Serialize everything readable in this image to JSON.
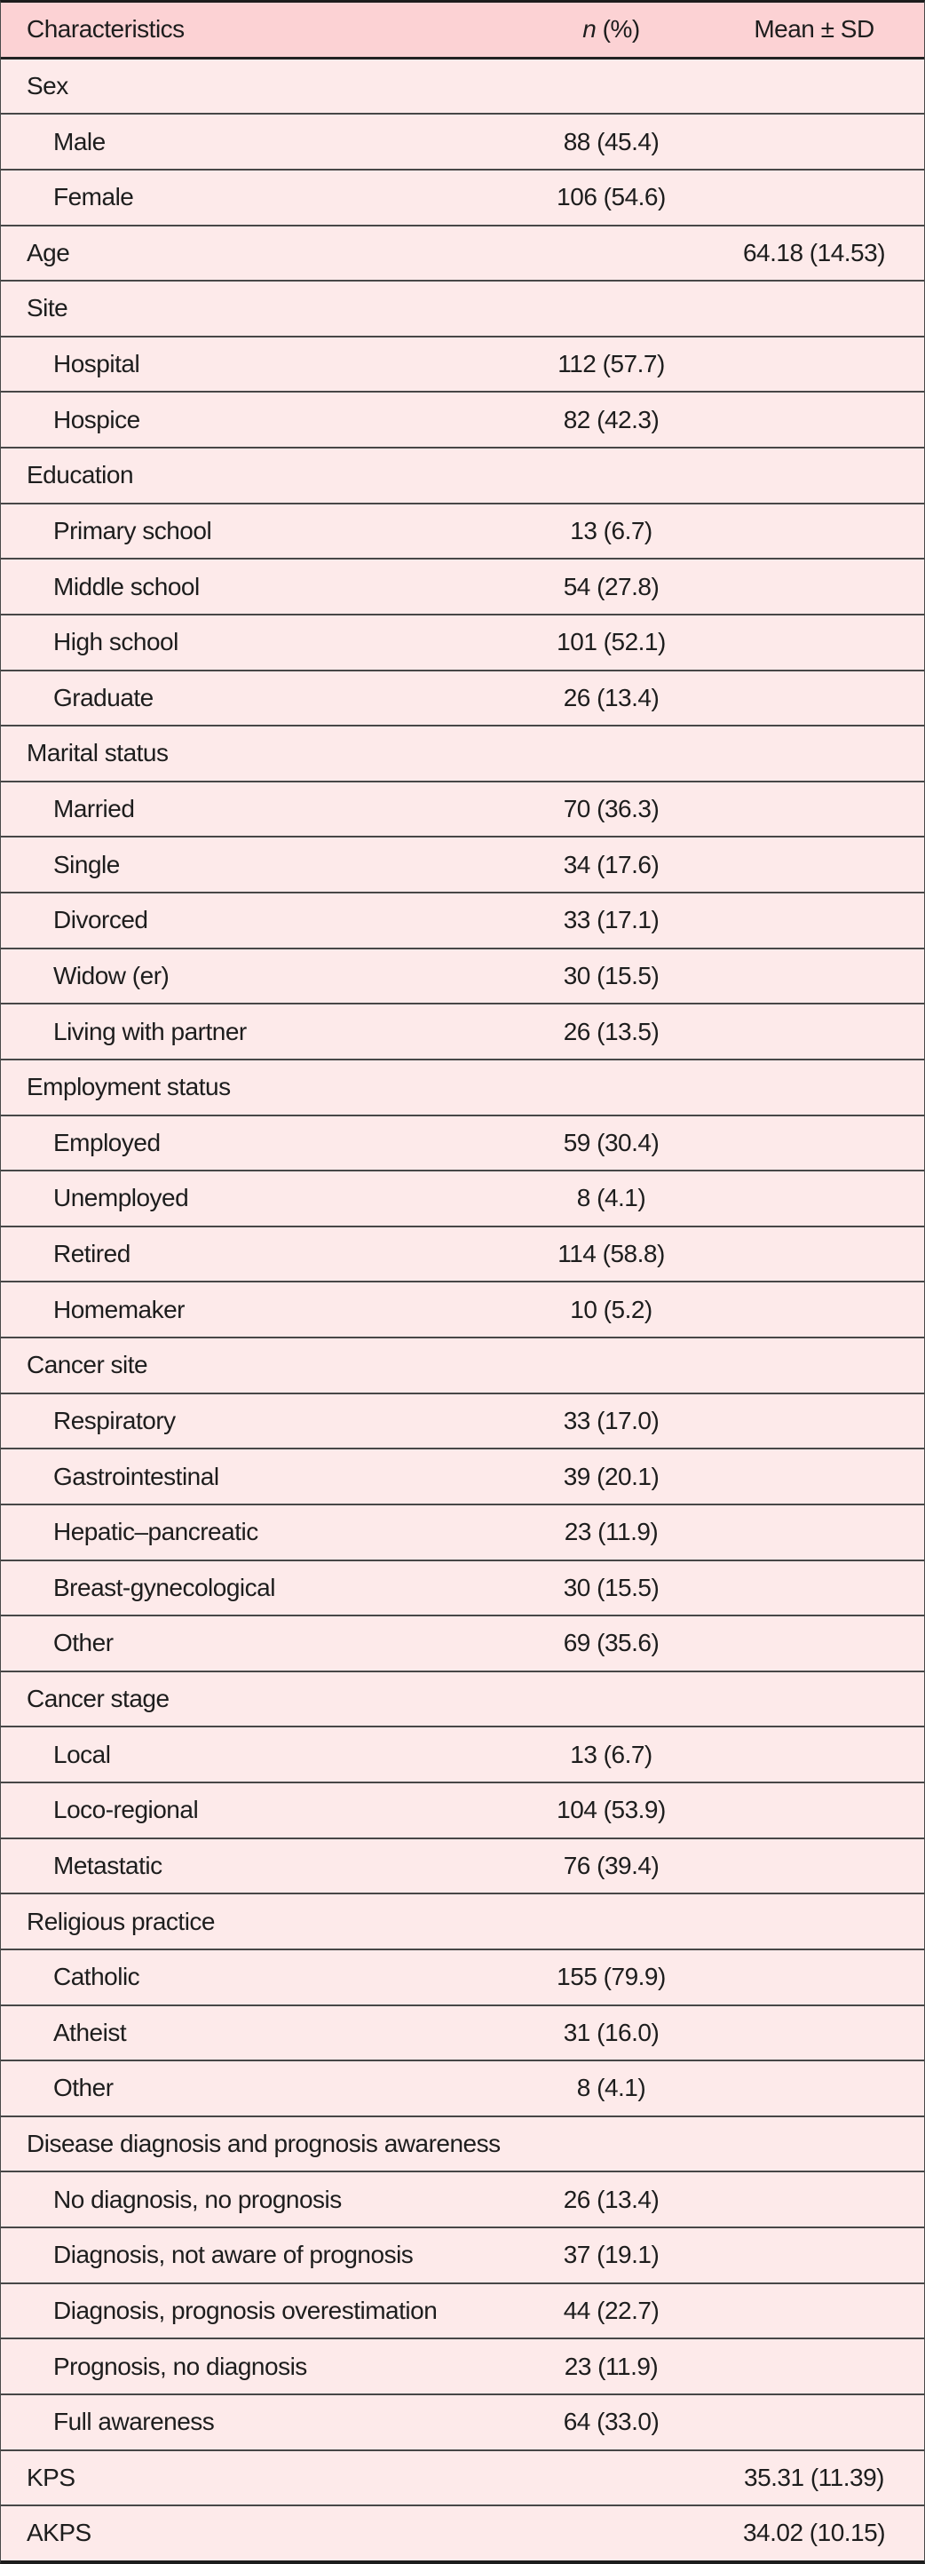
{
  "table": {
    "header": {
      "characteristics": "Characteristics",
      "n_italic": "n",
      "n_rest": " (%)",
      "mean_sd": "Mean ± SD"
    },
    "colors": {
      "header_bg": "#fcd2d4",
      "row_bg": "#fdeaea",
      "row_border": "#474747",
      "heavy_border": "#1c1c1c",
      "text": "#1d1d1d"
    },
    "rows": [
      {
        "type": "category",
        "label": "Sex",
        "n": "",
        "mean": ""
      },
      {
        "type": "item",
        "label": "Male",
        "n": "88 (45.4)",
        "mean": ""
      },
      {
        "type": "item",
        "label": "Female",
        "n": "106 (54.6)",
        "mean": ""
      },
      {
        "type": "category",
        "label": "Age",
        "n": "",
        "mean": "64.18 (14.53)"
      },
      {
        "type": "category",
        "label": "Site",
        "n": "",
        "mean": ""
      },
      {
        "type": "item",
        "label": "Hospital",
        "n": "112 (57.7)",
        "mean": ""
      },
      {
        "type": "item",
        "label": "Hospice",
        "n": "82 (42.3)",
        "mean": ""
      },
      {
        "type": "category",
        "label": "Education",
        "n": "",
        "mean": ""
      },
      {
        "type": "item",
        "label": "Primary school",
        "n": "13 (6.7)",
        "mean": ""
      },
      {
        "type": "item",
        "label": "Middle school",
        "n": "54 (27.8)",
        "mean": ""
      },
      {
        "type": "item",
        "label": "High school",
        "n": "101 (52.1)",
        "mean": ""
      },
      {
        "type": "item",
        "label": "Graduate",
        "n": "26 (13.4)",
        "mean": ""
      },
      {
        "type": "category",
        "label": "Marital status",
        "n": "",
        "mean": ""
      },
      {
        "type": "item",
        "label": "Married",
        "n": "70 (36.3)",
        "mean": ""
      },
      {
        "type": "item",
        "label": "Single",
        "n": "34 (17.6)",
        "mean": ""
      },
      {
        "type": "item",
        "label": "Divorced",
        "n": "33 (17.1)",
        "mean": ""
      },
      {
        "type": "item",
        "label": "Widow (er)",
        "n": "30 (15.5)",
        "mean": ""
      },
      {
        "type": "item",
        "label": "Living with partner",
        "n": "26 (13.5)",
        "mean": ""
      },
      {
        "type": "category",
        "label": "Employment status",
        "n": "",
        "mean": ""
      },
      {
        "type": "item",
        "label": "Employed",
        "n": "59 (30.4)",
        "mean": ""
      },
      {
        "type": "item",
        "label": "Unemployed",
        "n": "8 (4.1)",
        "mean": ""
      },
      {
        "type": "item",
        "label": "Retired",
        "n": "114 (58.8)",
        "mean": ""
      },
      {
        "type": "item",
        "label": "Homemaker",
        "n": "10 (5.2)",
        "mean": ""
      },
      {
        "type": "category",
        "label": "Cancer site",
        "n": "",
        "mean": ""
      },
      {
        "type": "item",
        "label": "Respiratory",
        "n": "33 (17.0)",
        "mean": ""
      },
      {
        "type": "item",
        "label": "Gastrointestinal",
        "n": "39 (20.1)",
        "mean": ""
      },
      {
        "type": "item",
        "label": "Hepatic–pancreatic",
        "n": "23 (11.9)",
        "mean": ""
      },
      {
        "type": "item",
        "label": "Breast-gynecological",
        "n": "30 (15.5)",
        "mean": ""
      },
      {
        "type": "item",
        "label": "Other",
        "n": "69 (35.6)",
        "mean": ""
      },
      {
        "type": "category",
        "label": "Cancer stage",
        "n": "",
        "mean": ""
      },
      {
        "type": "item",
        "label": "Local",
        "n": "13 (6.7)",
        "mean": ""
      },
      {
        "type": "item",
        "label": "Loco-regional",
        "n": "104 (53.9)",
        "mean": ""
      },
      {
        "type": "item",
        "label": "Metastatic",
        "n": "76 (39.4)",
        "mean": ""
      },
      {
        "type": "category",
        "label": "Religious practice",
        "n": "",
        "mean": ""
      },
      {
        "type": "item",
        "label": "Catholic",
        "n": "155 (79.9)",
        "mean": ""
      },
      {
        "type": "item",
        "label": "Atheist",
        "n": "31 (16.0)",
        "mean": ""
      },
      {
        "type": "item",
        "label": "Other",
        "n": "8 (4.1)",
        "mean": ""
      },
      {
        "type": "category",
        "label": "Disease diagnosis and prognosis awareness",
        "n": "",
        "mean": ""
      },
      {
        "type": "item",
        "label": "No diagnosis, no prognosis",
        "n": "26 (13.4)",
        "mean": ""
      },
      {
        "type": "item",
        "label": "Diagnosis, not aware of prognosis",
        "n": "37 (19.1)",
        "mean": ""
      },
      {
        "type": "item",
        "label": "Diagnosis, prognosis overestimation",
        "n": "44 (22.7)",
        "mean": ""
      },
      {
        "type": "item",
        "label": "Prognosis, no diagnosis",
        "n": "23 (11.9)",
        "mean": ""
      },
      {
        "type": "item",
        "label": "Full awareness",
        "n": "64 (33.0)",
        "mean": ""
      },
      {
        "type": "category",
        "label": "KPS",
        "n": "",
        "mean": "35.31 (11.39)"
      },
      {
        "type": "category",
        "label": "AKPS",
        "n": "",
        "mean": "34.02 (10.15)"
      }
    ]
  }
}
